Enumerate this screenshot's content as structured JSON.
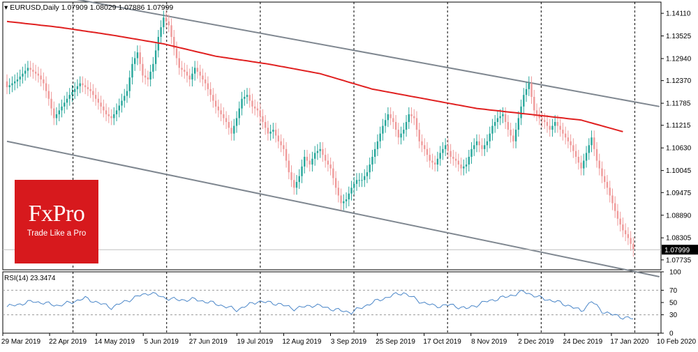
{
  "logo": {
    "brand": "FxPro",
    "tagline": "Trade Like a Pro",
    "color": "#d7191d"
  },
  "colors": {
    "up": "#26a69a",
    "down": "#ef9a9a",
    "ma": "#e02020",
    "channel": "#7f8790",
    "rsi": "#4a86c8",
    "grid": "#000000"
  },
  "chart_data": [
    {
      "type": "candlestick",
      "title": "EURUSD,Daily",
      "ohlc_header": "1.07909 1.08029 1.07886 1.07999",
      "last_price_label": "1.07999",
      "ylim": [
        1.0748,
        1.144
      ],
      "y_ticks": [
        "1.14110",
        "1.13525",
        "1.12940",
        "1.12370",
        "1.11785",
        "1.11215",
        "1.10630",
        "1.10045",
        "1.09475",
        "1.08890",
        "1.08305",
        "1.07735"
      ],
      "x_tick_labels": [
        "29 Mar 2019",
        "22 Apr 2019",
        "14 May 2019",
        "5 Jun 2019",
        "27 Jun 2019",
        "19 Jul 2019",
        "12 Aug 2019",
        "3 Sep 2019",
        "25 Sep 2019",
        "17 Oct 2019",
        "8 Nov 2019",
        "2 Dec 2019",
        "24 Dec 2019",
        "17 Jan 2020",
        "10 Feb 2020"
      ],
      "vertical_grid_after_labels": [
        1,
        3,
        5,
        7,
        9,
        11,
        13
      ],
      "close_anchors": [
        {
          "i": 0,
          "v": 1.122
        },
        {
          "i": 4,
          "v": 1.124
        },
        {
          "i": 8,
          "v": 1.127
        },
        {
          "i": 12,
          "v": 1.125
        },
        {
          "i": 14,
          "v": 1.123
        },
        {
          "i": 16,
          "v": 1.119
        },
        {
          "i": 18,
          "v": 1.114
        },
        {
          "i": 20,
          "v": 1.116
        },
        {
          "i": 24,
          "v": 1.12
        },
        {
          "i": 28,
          "v": 1.123
        },
        {
          "i": 32,
          "v": 1.121
        },
        {
          "i": 36,
          "v": 1.117
        },
        {
          "i": 38,
          "v": 1.115
        },
        {
          "i": 40,
          "v": 1.114
        },
        {
          "i": 42,
          "v": 1.116
        },
        {
          "i": 46,
          "v": 1.121
        },
        {
          "i": 48,
          "v": 1.128
        },
        {
          "i": 50,
          "v": 1.131
        },
        {
          "i": 52,
          "v": 1.125
        },
        {
          "i": 54,
          "v": 1.124
        },
        {
          "i": 56,
          "v": 1.128
        },
        {
          "i": 58,
          "v": 1.135
        },
        {
          "i": 60,
          "v": 1.14
        },
        {
          "i": 62,
          "v": 1.138
        },
        {
          "i": 64,
          "v": 1.132
        },
        {
          "i": 66,
          "v": 1.127
        },
        {
          "i": 68,
          "v": 1.126
        },
        {
          "i": 70,
          "v": 1.124
        },
        {
          "i": 72,
          "v": 1.127
        },
        {
          "i": 74,
          "v": 1.125
        },
        {
          "i": 76,
          "v": 1.123
        },
        {
          "i": 78,
          "v": 1.12
        },
        {
          "i": 80,
          "v": 1.117
        },
        {
          "i": 82,
          "v": 1.115
        },
        {
          "i": 84,
          "v": 1.113
        },
        {
          "i": 86,
          "v": 1.11
        },
        {
          "i": 88,
          "v": 1.114
        },
        {
          "i": 90,
          "v": 1.119
        },
        {
          "i": 92,
          "v": 1.12
        },
        {
          "i": 94,
          "v": 1.117
        },
        {
          "i": 96,
          "v": 1.116
        },
        {
          "i": 98,
          "v": 1.113
        },
        {
          "i": 100,
          "v": 1.11
        },
        {
          "i": 102,
          "v": 1.111
        },
        {
          "i": 104,
          "v": 1.108
        },
        {
          "i": 106,
          "v": 1.106
        },
        {
          "i": 108,
          "v": 1.1
        },
        {
          "i": 110,
          "v": 1.096
        },
        {
          "i": 112,
          "v": 1.099
        },
        {
          "i": 114,
          "v": 1.104
        },
        {
          "i": 116,
          "v": 1.102
        },
        {
          "i": 118,
          "v": 1.105
        },
        {
          "i": 120,
          "v": 1.106
        },
        {
          "i": 122,
          "v": 1.103
        },
        {
          "i": 124,
          "v": 1.101
        },
        {
          "i": 126,
          "v": 1.096
        },
        {
          "i": 128,
          "v": 1.092
        },
        {
          "i": 130,
          "v": 1.093
        },
        {
          "i": 132,
          "v": 1.096
        },
        {
          "i": 134,
          "v": 1.098
        },
        {
          "i": 136,
          "v": 1.098
        },
        {
          "i": 138,
          "v": 1.1
        },
        {
          "i": 140,
          "v": 1.104
        },
        {
          "i": 142,
          "v": 1.108
        },
        {
          "i": 144,
          "v": 1.112
        },
        {
          "i": 146,
          "v": 1.115
        },
        {
          "i": 148,
          "v": 1.113
        },
        {
          "i": 150,
          "v": 1.109
        },
        {
          "i": 152,
          "v": 1.111
        },
        {
          "i": 154,
          "v": 1.115
        },
        {
          "i": 156,
          "v": 1.114
        },
        {
          "i": 158,
          "v": 1.108
        },
        {
          "i": 160,
          "v": 1.106
        },
        {
          "i": 162,
          "v": 1.103
        },
        {
          "i": 164,
          "v": 1.102
        },
        {
          "i": 166,
          "v": 1.105
        },
        {
          "i": 168,
          "v": 1.107
        },
        {
          "i": 170,
          "v": 1.104
        },
        {
          "i": 172,
          "v": 1.103
        },
        {
          "i": 174,
          "v": 1.101
        },
        {
          "i": 176,
          "v": 1.102
        },
        {
          "i": 178,
          "v": 1.106
        },
        {
          "i": 180,
          "v": 1.108
        },
        {
          "i": 182,
          "v": 1.106
        },
        {
          "i": 184,
          "v": 1.108
        },
        {
          "i": 186,
          "v": 1.112
        },
        {
          "i": 188,
          "v": 1.114
        },
        {
          "i": 190,
          "v": 1.115
        },
        {
          "i": 192,
          "v": 1.111
        },
        {
          "i": 194,
          "v": 1.108
        },
        {
          "i": 196,
          "v": 1.114
        },
        {
          "i": 198,
          "v": 1.12
        },
        {
          "i": 200,
          "v": 1.123
        },
        {
          "i": 202,
          "v": 1.116
        },
        {
          "i": 204,
          "v": 1.114
        },
        {
          "i": 206,
          "v": 1.113
        },
        {
          "i": 208,
          "v": 1.111
        },
        {
          "i": 210,
          "v": 1.113
        },
        {
          "i": 212,
          "v": 1.111
        },
        {
          "i": 214,
          "v": 1.109
        },
        {
          "i": 216,
          "v": 1.107
        },
        {
          "i": 218,
          "v": 1.104
        },
        {
          "i": 220,
          "v": 1.101
        },
        {
          "i": 222,
          "v": 1.105
        },
        {
          "i": 224,
          "v": 1.109
        },
        {
          "i": 226,
          "v": 1.103
        },
        {
          "i": 228,
          "v": 1.099
        },
        {
          "i": 230,
          "v": 1.096
        },
        {
          "i": 232,
          "v": 1.092
        },
        {
          "i": 234,
          "v": 1.088
        },
        {
          "i": 236,
          "v": 1.085
        },
        {
          "i": 238,
          "v": 1.083
        },
        {
          "i": 240,
          "v": 1.08
        }
      ],
      "moving_average": [
        {
          "i": 0,
          "v": 1.139
        },
        {
          "i": 20,
          "v": 1.1375
        },
        {
          "i": 40,
          "v": 1.1355
        },
        {
          "i": 60,
          "v": 1.1332
        },
        {
          "i": 80,
          "v": 1.13
        },
        {
          "i": 100,
          "v": 1.128
        },
        {
          "i": 120,
          "v": 1.1255
        },
        {
          "i": 140,
          "v": 1.1215
        },
        {
          "i": 160,
          "v": 1.119
        },
        {
          "i": 180,
          "v": 1.1165
        },
        {
          "i": 200,
          "v": 1.115
        },
        {
          "i": 220,
          "v": 1.1135
        },
        {
          "i": 236,
          "v": 1.1105
        }
      ],
      "channel_upper": [
        {
          "i": 0,
          "v": 1.148
        },
        {
          "i": 250,
          "v": 1.117
        }
      ],
      "channel_lower": [
        {
          "i": 0,
          "v": 1.108
        },
        {
          "i": 250,
          "v": 1.073
        }
      ]
    },
    {
      "type": "line",
      "title": "RSI(14) 23.3474",
      "ylim": [
        0,
        100
      ],
      "y_ticks": [
        "100",
        "70",
        "50",
        "30",
        "0"
      ],
      "levels": [
        70,
        30
      ],
      "values": [
        {
          "i": 0,
          "v": 43
        },
        {
          "i": 10,
          "v": 52
        },
        {
          "i": 20,
          "v": 45
        },
        {
          "i": 30,
          "v": 57
        },
        {
          "i": 40,
          "v": 42
        },
        {
          "i": 50,
          "v": 60
        },
        {
          "i": 55,
          "v": 66
        },
        {
          "i": 60,
          "v": 58
        },
        {
          "i": 66,
          "v": 54
        },
        {
          "i": 72,
          "v": 55
        },
        {
          "i": 80,
          "v": 48
        },
        {
          "i": 88,
          "v": 38
        },
        {
          "i": 96,
          "v": 52
        },
        {
          "i": 104,
          "v": 48
        },
        {
          "i": 110,
          "v": 40
        },
        {
          "i": 118,
          "v": 46
        },
        {
          "i": 126,
          "v": 38
        },
        {
          "i": 132,
          "v": 34
        },
        {
          "i": 140,
          "v": 50
        },
        {
          "i": 148,
          "v": 62
        },
        {
          "i": 152,
          "v": 66
        },
        {
          "i": 158,
          "v": 52
        },
        {
          "i": 164,
          "v": 44
        },
        {
          "i": 170,
          "v": 46
        },
        {
          "i": 176,
          "v": 40
        },
        {
          "i": 184,
          "v": 52
        },
        {
          "i": 192,
          "v": 60
        },
        {
          "i": 198,
          "v": 68
        },
        {
          "i": 204,
          "v": 58
        },
        {
          "i": 210,
          "v": 52
        },
        {
          "i": 216,
          "v": 44
        },
        {
          "i": 220,
          "v": 36
        },
        {
          "i": 224,
          "v": 52
        },
        {
          "i": 228,
          "v": 36
        },
        {
          "i": 232,
          "v": 30
        },
        {
          "i": 236,
          "v": 26
        },
        {
          "i": 240,
          "v": 23.35
        }
      ]
    }
  ]
}
